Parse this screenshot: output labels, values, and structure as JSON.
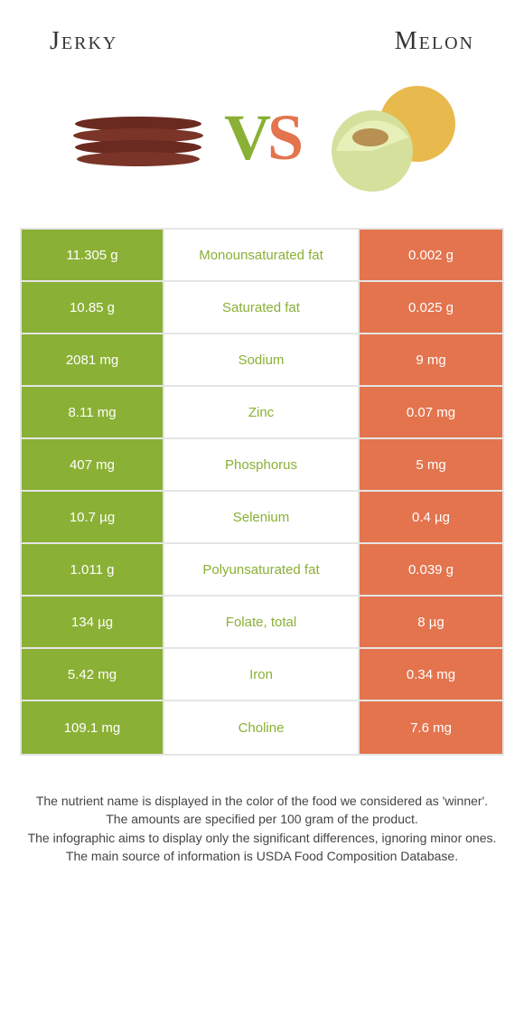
{
  "colors": {
    "left": "#8ab035",
    "right": "#e3744e",
    "border": "#e5e5e5",
    "title": "#333333",
    "footer": "#444444"
  },
  "header": {
    "left_title": "Jerky",
    "right_title": "Melon",
    "vs_v": "V",
    "vs_s": "S"
  },
  "nutrients": [
    {
      "left": "11.305 g",
      "label": "Monounsaturated fat",
      "right": "0.002 g",
      "winner": "left"
    },
    {
      "left": "10.85 g",
      "label": "Saturated fat",
      "right": "0.025 g",
      "winner": "left"
    },
    {
      "left": "2081 mg",
      "label": "Sodium",
      "right": "9 mg",
      "winner": "left"
    },
    {
      "left": "8.11 mg",
      "label": "Zinc",
      "right": "0.07 mg",
      "winner": "left"
    },
    {
      "left": "407 mg",
      "label": "Phosphorus",
      "right": "5 mg",
      "winner": "left"
    },
    {
      "left": "10.7 µg",
      "label": "Selenium",
      "right": "0.4 µg",
      "winner": "left"
    },
    {
      "left": "1.011 g",
      "label": "Polyunsaturated fat",
      "right": "0.039 g",
      "winner": "left"
    },
    {
      "left": "134 µg",
      "label": "Folate, total",
      "right": "8 µg",
      "winner": "left"
    },
    {
      "left": "5.42 mg",
      "label": "Iron",
      "right": "0.34 mg",
      "winner": "left"
    },
    {
      "left": "109.1 mg",
      "label": "Choline",
      "right": "7.6 mg",
      "winner": "left"
    }
  ],
  "footer": {
    "line1": "The nutrient name is displayed in the color of the food we considered as 'winner'.",
    "line2": "The amounts are specified per 100 gram of the product.",
    "line3": "The infographic aims to display only the significant differences, ignoring minor ones.",
    "line4": "The main source of information is USDA Food Composition Database."
  }
}
